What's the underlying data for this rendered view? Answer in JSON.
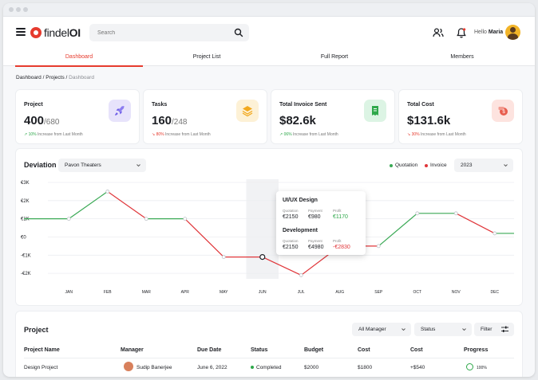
{
  "header": {
    "logo_brand": "findel",
    "logo_suffix": "OI",
    "search_placeholder": "Search",
    "hello_prefix": "Hello",
    "user_name": "Maria"
  },
  "tabs": [
    {
      "label": "Dashboard",
      "active": true
    },
    {
      "label": "Project List",
      "active": false
    },
    {
      "label": "Full Report",
      "active": false
    },
    {
      "label": "Members",
      "active": false
    }
  ],
  "breadcrumb": {
    "part1": "Dashboard",
    "sep": " / ",
    "part2": "Projects",
    "part3": "Dashboard"
  },
  "kpis": [
    {
      "title": "Project",
      "value": "400",
      "sub": "/680",
      "change": "10%",
      "change_text": "Increase from Last Month",
      "trend": "up",
      "icon": "rocket-icon",
      "icon_bg": "#e7e3fb",
      "icon_color": "#6c5ce7"
    },
    {
      "title": "Tasks",
      "value": "160",
      "sub": "/248",
      "change": "80%",
      "change_text": "Increase from Last Month",
      "trend": "down",
      "icon": "layers-icon",
      "icon_bg": "#fdf1d6",
      "icon_color": "#f2a81d"
    },
    {
      "title": "Total Invoice Sent",
      "value": "$82.6k",
      "sub": "",
      "change": "06%",
      "change_text": "Increase from Last Month",
      "trend": "up",
      "icon": "receipt-icon",
      "icon_bg": "#dcf4e4",
      "icon_color": "#2ea84a"
    },
    {
      "title": "Total Cost",
      "value": "$131.6k",
      "sub": "",
      "change": "30%",
      "change_text": "Increase from Last Month",
      "trend": "down",
      "icon": "money-icon",
      "icon_bg": "#fde3df",
      "icon_color": "#e85d4e"
    }
  ],
  "deviation": {
    "title": "Deviation",
    "filter_value": "Pavon Theaters",
    "legend_quotation": "Quotation",
    "legend_invoice": "Invoice",
    "year_value": "2023",
    "colors": {
      "up": "#3aa955",
      "down": "#e0363a"
    }
  },
  "chart_data": {
    "type": "line",
    "categories": [
      "JAN",
      "FEB",
      "MAR",
      "APR",
      "MAY",
      "JUN",
      "JUL",
      "AUG",
      "SEP",
      "OCT",
      "NOV",
      "DEC"
    ],
    "y_tick_labels": [
      "€3K",
      "€2K",
      "€1K",
      "€0",
      "-€1K",
      "-€2K"
    ],
    "y_ticks": [
      3,
      2,
      1,
      0,
      -1,
      -2
    ],
    "ylim": [
      -2.3,
      3
    ],
    "series": [
      {
        "values": [
          1,
          2.5,
          1,
          1,
          -1.1,
          -1.1,
          -2.1,
          -0.5,
          -0.5,
          1.3,
          1.3,
          0.2
        ]
      }
    ],
    "highlight_index": 5
  },
  "tooltip": {
    "section1_title": "UI/UX Design",
    "section2_title": "Development",
    "label_quotation": "Quotation",
    "label_payment": "Payment",
    "label_profit": "Profit",
    "s1_quotation": "€2150",
    "s1_payment": "€980",
    "s1_profit": "€1170",
    "s2_quotation": "€2150",
    "s2_payment": "€4980",
    "s2_profit": "-€2830"
  },
  "projects": {
    "title": "Project",
    "manager_filter": "All Manager",
    "status_filter": "Status",
    "filter_label": "Filter",
    "columns": [
      "Project Name",
      "Manager",
      "Due Date",
      "Status",
      "Budget",
      "Cost",
      "Cost",
      "Progress"
    ],
    "row": {
      "name": "Design Project",
      "manager": "Sudip Banerjee",
      "due": "June 6, 2022",
      "status": "Completed",
      "budget": "$2000",
      "cost": "$1800",
      "cost2": "+$540",
      "progress": "100%"
    }
  }
}
